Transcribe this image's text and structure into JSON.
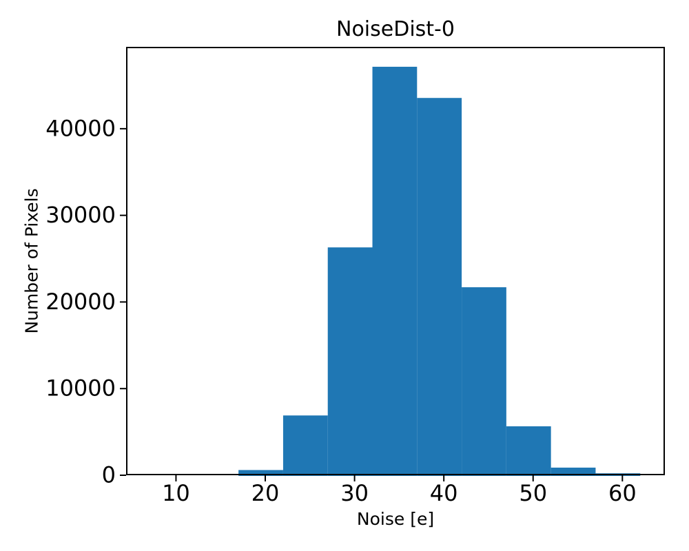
{
  "chart_data": {
    "type": "bar",
    "subtype": "histogram",
    "title": "NoiseDist-0",
    "xlabel": "Noise [e]",
    "ylabel": "Number of Pixels",
    "bin_edges": [
      17,
      22,
      27,
      32,
      37,
      42,
      47,
      52,
      57,
      62
    ],
    "counts": [
      600,
      6900,
      26300,
      47150,
      43550,
      21700,
      5650,
      880,
      220
    ],
    "xticks": [
      10,
      20,
      30,
      40,
      50,
      60
    ],
    "yticks": [
      0,
      10000,
      20000,
      30000,
      40000
    ],
    "xlim": [
      4.41,
      64.76
    ],
    "ylim": [
      0,
      49450
    ],
    "bar_color": "#1f77b4",
    "axis_color": "#000000",
    "text_color": "#000000",
    "grid": false,
    "legend": null
  }
}
